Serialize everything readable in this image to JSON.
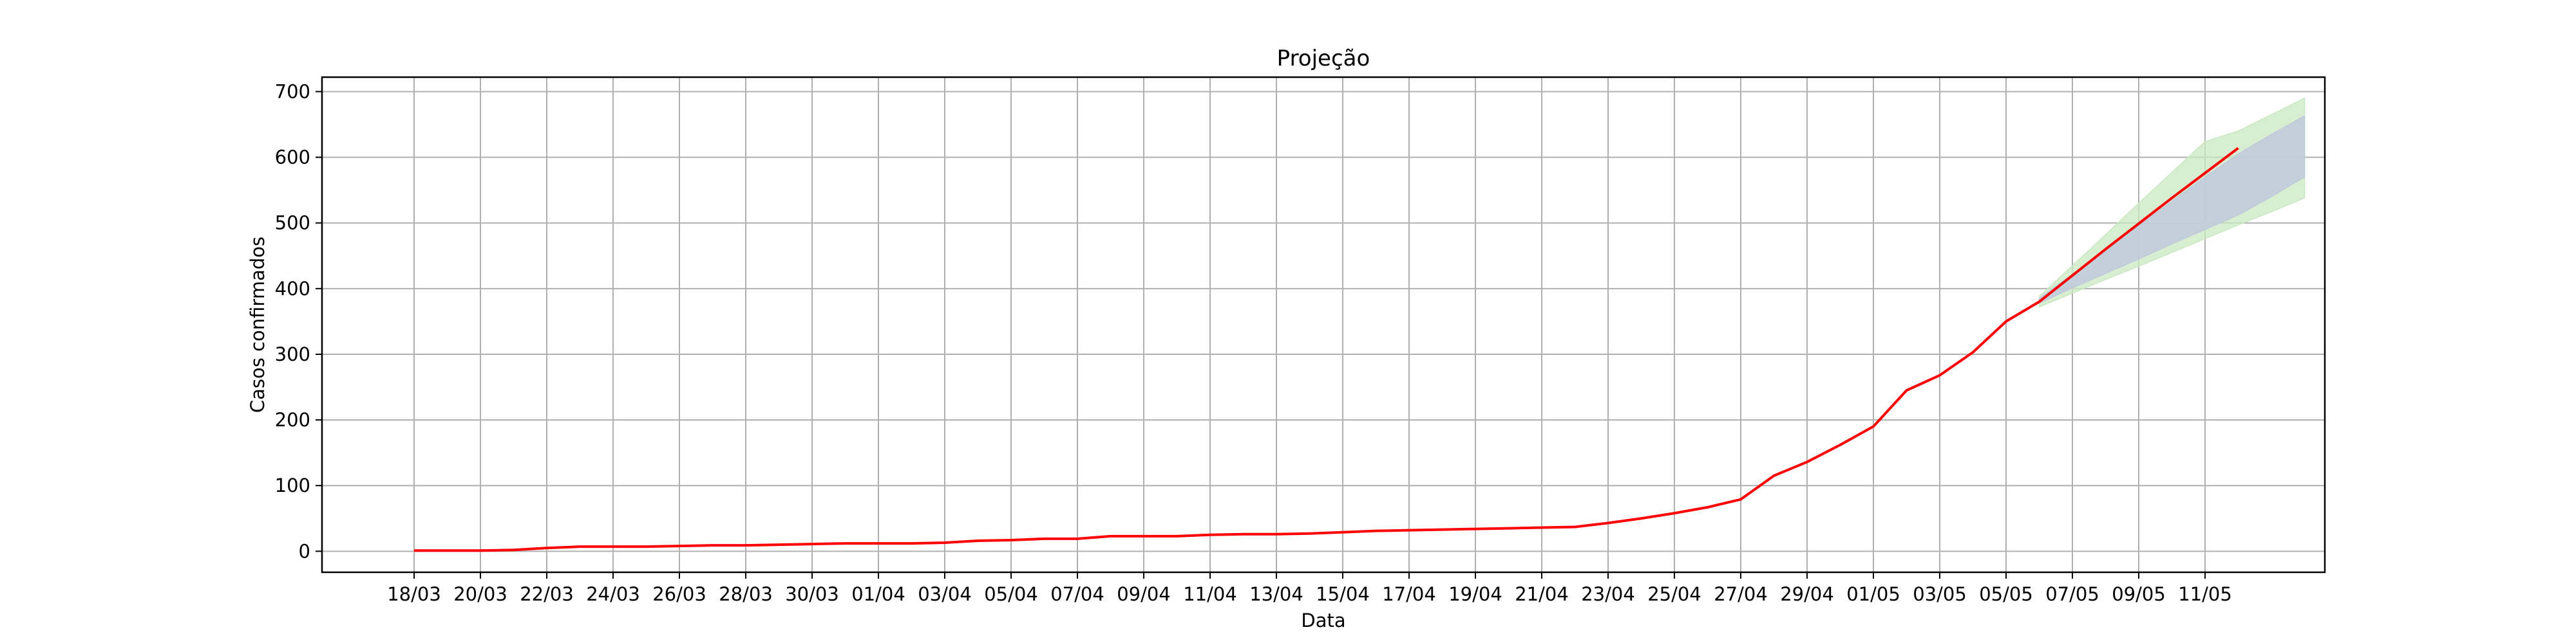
{
  "chart_data": {
    "type": "line",
    "title": "Projeção",
    "xlabel": "Data",
    "ylabel": "Casos confirmados",
    "grid": true,
    "ylim": [
      -32,
      722
    ],
    "yticks": [
      0,
      100,
      200,
      300,
      400,
      500,
      600,
      700
    ],
    "x_tick_labels": [
      "18/03",
      "20/03",
      "22/03",
      "24/03",
      "26/03",
      "28/03",
      "30/03",
      "01/04",
      "03/04",
      "05/04",
      "07/04",
      "09/04",
      "11/04",
      "13/04",
      "15/04",
      "17/04",
      "19/04",
      "21/04",
      "23/04",
      "25/04",
      "27/04",
      "29/04",
      "01/05",
      "03/05",
      "05/05",
      "07/05",
      "09/05",
      "11/05"
    ],
    "colors": {
      "line": "#ff0000",
      "band_outer": "#c9e8c2",
      "band_inner": "#c0c9dc",
      "grid": "#b0b0b0"
    },
    "series": [
      {
        "values": [
          1,
          1,
          1,
          2,
          5,
          7,
          7,
          7,
          8,
          9,
          9,
          10,
          11,
          12,
          12,
          12,
          13,
          16,
          17,
          19,
          19,
          23,
          23,
          23,
          25,
          26,
          26,
          27,
          29,
          31,
          32,
          33,
          34,
          35,
          36,
          37,
          43,
          50,
          58,
          67,
          79,
          115,
          136,
          162,
          190,
          245,
          268,
          303,
          350,
          380,
          420,
          460,
          499,
          538,
          576,
          614
        ]
      }
    ],
    "bands": [
      {
        "start_index": 49,
        "lower": [
          372,
          393,
          414,
          434,
          455,
          476,
          497,
          517,
          538
        ],
        "upper": [
          388,
          435,
          482,
          530,
          577,
          624,
          640,
          665,
          690
        ]
      },
      {
        "start_index": 49,
        "lower": [
          378,
          401,
          423,
          445,
          468,
          490,
          512,
          540,
          570
        ],
        "upper": [
          385,
          422,
          459,
          496,
          533,
          570,
          605,
          635,
          663
        ]
      }
    ]
  }
}
